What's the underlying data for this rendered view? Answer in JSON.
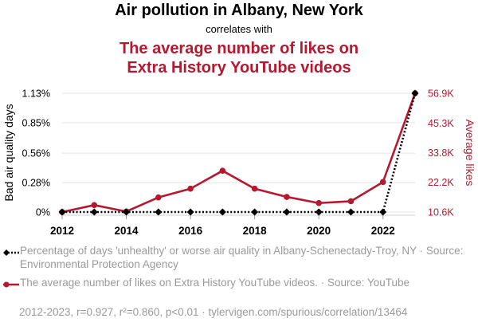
{
  "titles": {
    "line1": "Air pollution in Albany, New York",
    "line2": "correlates with",
    "line3a": "The average number of likes on",
    "line3b": "Extra History YouTube videos"
  },
  "colors": {
    "series1": "#000000",
    "series2": "#b5182f",
    "muted": "#9a9a9a"
  },
  "chart_data": {
    "type": "line",
    "x": [
      2012,
      2013,
      2014,
      2015,
      2016,
      2017,
      2018,
      2019,
      2020,
      2021,
      2022,
      2023
    ],
    "xticks": [
      "2012",
      "2014",
      "2016",
      "2018",
      "2020",
      "2022"
    ],
    "xlim": [
      2012,
      2023
    ],
    "left_axis": {
      "label": "Bad air quality days",
      "ticks": [
        {
          "value": 0,
          "label": "0%"
        },
        {
          "value": 0.28,
          "label": "0.28%"
        },
        {
          "value": 0.56,
          "label": "0.56%"
        },
        {
          "value": 0.85,
          "label": "0.85%"
        },
        {
          "value": 1.13,
          "label": "1.13%"
        }
      ],
      "ylim": [
        0,
        1.13
      ]
    },
    "right_axis": {
      "label": "Average likes",
      "ticks": [
        {
          "value": 10600,
          "label": "10.6K"
        },
        {
          "value": 22200,
          "label": "22.2K"
        },
        {
          "value": 33800,
          "label": "33.8K"
        },
        {
          "value": 45300,
          "label": "45.3K"
        },
        {
          "value": 56900,
          "label": "56.9K"
        }
      ],
      "ylim": [
        10600,
        56900
      ]
    },
    "series": [
      {
        "axis": "left",
        "style": "dotted",
        "marker": "diamond",
        "values": [
          0,
          0,
          0,
          0,
          0,
          0,
          0,
          0,
          0,
          0,
          0,
          1.13
        ]
      },
      {
        "axis": "right",
        "style": "solid",
        "marker": "circle",
        "values": [
          10600,
          13300,
          10800,
          16300,
          19700,
          26700,
          19700,
          16500,
          14100,
          14800,
          22300,
          56900
        ]
      }
    ]
  },
  "legend": {
    "item1": "Percentage of days 'unhealthy' or worse air quality in Albany-Schenectady-Troy, NY · Source: Environmental Protection Agency",
    "item2": "The average number of likes on Extra History YouTube videos. · Source: YouTube"
  },
  "footer": "2012-2023, r=0.927, r²=0.860, p<0.01 · tylervigen.com/spurious/correlation/13464"
}
